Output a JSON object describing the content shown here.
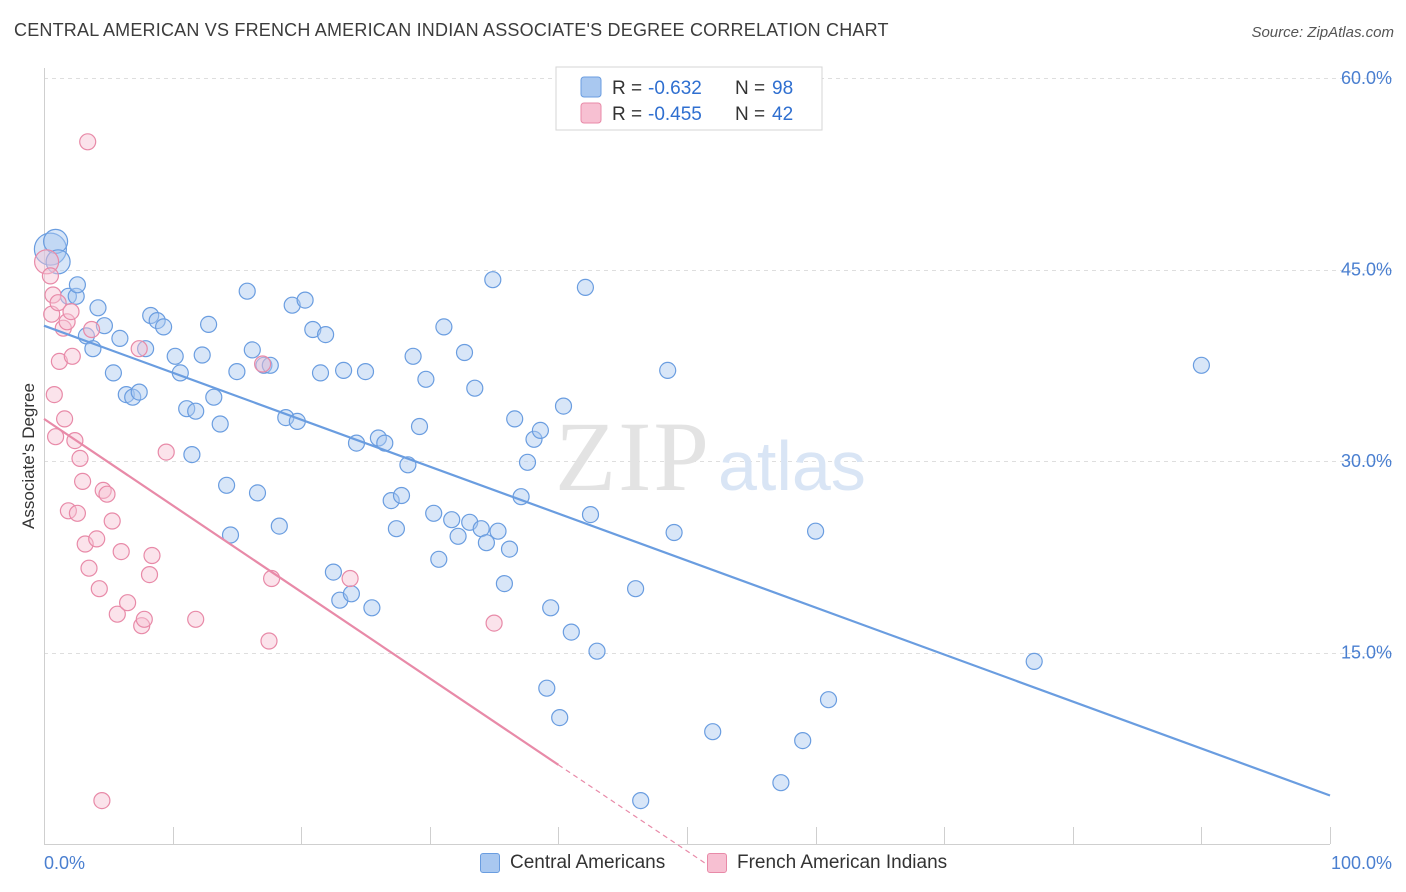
{
  "header": {
    "title": "CENTRAL AMERICAN VS FRENCH AMERICAN INDIAN ASSOCIATE'S DEGREE CORRELATION CHART",
    "source": "Source: ZipAtlas.com"
  },
  "watermark": {
    "zip": "ZIP",
    "atlas": "atlas"
  },
  "stats_legend": [
    {
      "r_label": "R =",
      "r_value": "-0.632",
      "n_label": "N =",
      "n_value": "98",
      "color": "#a9c8f0",
      "stroke": "#6a9de0"
    },
    {
      "r_label": "R =",
      "r_value": "-0.455",
      "n_label": "N =",
      "n_value": "42",
      "color": "#f7c0d2",
      "stroke": "#e88aa8"
    }
  ],
  "bottom_legend": [
    {
      "label": "Central Americans",
      "color": "#a9c8f0",
      "stroke": "#6a9de0"
    },
    {
      "label": "French American Indians",
      "color": "#f7c0d2",
      "stroke": "#e88aa8"
    }
  ],
  "chart_data": {
    "type": "scatter",
    "ylabel": "Associate's Degree",
    "xlim": [
      0,
      100
    ],
    "ylim": [
      0,
      60
    ],
    "x_tick_labels": [
      {
        "value": 0,
        "label": "0.0%"
      },
      {
        "value": 100,
        "label": "100.0%"
      }
    ],
    "y_tick_labels": [
      {
        "value": 15,
        "label": "15.0%"
      },
      {
        "value": 30,
        "label": "30.0%"
      },
      {
        "value": 45,
        "label": "45.0%"
      },
      {
        "value": 60,
        "label": "60.0%"
      }
    ],
    "grid": true,
    "series": [
      {
        "name": "Central Americans",
        "color": "#6a9de0",
        "fill": "#a9c8f0",
        "trend": {
          "x": [
            0,
            100
          ],
          "y": [
            40.6,
            3.8
          ]
        },
        "points": [
          [
            0.5,
            46.6,
            3
          ],
          [
            0.9,
            47.2,
            2
          ],
          [
            1.1,
            45.6,
            2
          ],
          [
            1.9,
            42.9,
            1
          ],
          [
            2.5,
            42.9,
            1
          ],
          [
            2.6,
            43.8,
            1
          ],
          [
            3.3,
            39.8,
            1
          ],
          [
            3.8,
            38.8,
            1
          ],
          [
            4.2,
            42.0,
            1
          ],
          [
            4.7,
            40.6,
            1
          ],
          [
            5.4,
            36.9,
            1
          ],
          [
            5.9,
            39.6,
            1
          ],
          [
            6.4,
            35.2,
            1
          ],
          [
            6.9,
            35.0,
            1
          ],
          [
            7.4,
            35.4,
            1
          ],
          [
            7.9,
            38.8,
            1
          ],
          [
            8.3,
            41.4,
            1
          ],
          [
            8.8,
            41.0,
            1
          ],
          [
            9.3,
            40.5,
            1
          ],
          [
            10.2,
            38.2,
            1
          ],
          [
            10.6,
            36.9,
            1
          ],
          [
            11.1,
            34.1,
            1
          ],
          [
            11.5,
            30.5,
            1
          ],
          [
            11.8,
            33.9,
            1
          ],
          [
            12.3,
            38.3,
            1
          ],
          [
            12.8,
            40.7,
            1
          ],
          [
            13.2,
            35.0,
            1
          ],
          [
            13.7,
            32.9,
            1
          ],
          [
            14.2,
            28.1,
            1
          ],
          [
            14.5,
            24.2,
            1
          ],
          [
            15.0,
            37.0,
            1
          ],
          [
            15.8,
            43.3,
            1
          ],
          [
            16.2,
            38.7,
            1
          ],
          [
            16.6,
            27.5,
            1
          ],
          [
            17.1,
            37.5,
            1
          ],
          [
            17.6,
            37.5,
            1
          ],
          [
            18.3,
            24.9,
            1
          ],
          [
            18.8,
            33.4,
            1
          ],
          [
            19.3,
            42.2,
            1
          ],
          [
            19.7,
            33.1,
            1
          ],
          [
            20.3,
            42.6,
            1
          ],
          [
            20.9,
            40.3,
            1
          ],
          [
            21.5,
            36.9,
            1
          ],
          [
            21.9,
            39.9,
            1
          ],
          [
            22.5,
            21.3,
            1
          ],
          [
            23.0,
            19.1,
            1
          ],
          [
            23.3,
            37.1,
            1
          ],
          [
            23.9,
            19.6,
            1
          ],
          [
            24.3,
            31.4,
            1
          ],
          [
            25.0,
            37.0,
            1
          ],
          [
            25.5,
            18.5,
            1
          ],
          [
            26.0,
            31.8,
            1
          ],
          [
            26.5,
            31.4,
            1
          ],
          [
            27.0,
            26.9,
            1
          ],
          [
            27.4,
            24.7,
            1
          ],
          [
            27.8,
            27.3,
            1
          ],
          [
            28.3,
            29.7,
            1
          ],
          [
            28.7,
            38.2,
            1
          ],
          [
            29.2,
            32.7,
            1
          ],
          [
            29.7,
            36.4,
            1
          ],
          [
            30.3,
            25.9,
            1
          ],
          [
            30.7,
            22.3,
            1
          ],
          [
            31.1,
            40.5,
            1
          ],
          [
            31.7,
            25.4,
            1
          ],
          [
            32.2,
            24.1,
            1
          ],
          [
            32.7,
            38.5,
            1
          ],
          [
            33.1,
            25.2,
            1
          ],
          [
            33.5,
            35.7,
            1
          ],
          [
            34.0,
            24.7,
            1
          ],
          [
            34.4,
            23.6,
            1
          ],
          [
            34.9,
            44.2,
            1
          ],
          [
            35.3,
            24.5,
            1
          ],
          [
            35.8,
            20.4,
            1
          ],
          [
            36.2,
            23.1,
            1
          ],
          [
            36.6,
            33.3,
            1
          ],
          [
            37.1,
            27.2,
            1
          ],
          [
            37.6,
            29.9,
            1
          ],
          [
            38.1,
            31.7,
            1
          ],
          [
            38.6,
            32.4,
            1
          ],
          [
            39.1,
            12.2,
            1
          ],
          [
            39.4,
            18.5,
            1
          ],
          [
            40.1,
            9.9,
            1
          ],
          [
            40.4,
            34.3,
            1
          ],
          [
            41.0,
            16.6,
            1
          ],
          [
            42.1,
            43.6,
            1
          ],
          [
            42.5,
            25.8,
            1
          ],
          [
            43.0,
            15.1,
            1
          ],
          [
            46.0,
            20.0,
            1
          ],
          [
            46.4,
            3.4,
            1
          ],
          [
            48.5,
            37.1,
            1
          ],
          [
            49.0,
            24.4,
            1
          ],
          [
            52.0,
            8.8,
            1
          ],
          [
            57.3,
            4.8,
            1
          ],
          [
            59.0,
            8.1,
            1
          ],
          [
            60.0,
            24.5,
            1
          ],
          [
            61.0,
            11.3,
            1
          ],
          [
            77.0,
            14.3,
            1
          ],
          [
            90.0,
            37.5,
            1
          ]
        ]
      },
      {
        "name": "French American Indians",
        "color": "#e88aa8",
        "fill": "#f7c0d2",
        "trend": {
          "x": [
            0,
            40
          ],
          "y": [
            33.3,
            6.2
          ]
        },
        "trend_ext": {
          "x": [
            40,
            52
          ],
          "y": [
            6.2,
            -1.9
          ]
        },
        "points": [
          [
            0.2,
            45.6,
            2
          ],
          [
            0.5,
            44.5,
            1
          ],
          [
            0.6,
            41.5,
            1
          ],
          [
            0.7,
            43.0,
            1
          ],
          [
            0.8,
            35.2,
            1
          ],
          [
            0.9,
            31.9,
            1
          ],
          [
            1.1,
            42.4,
            1
          ],
          [
            1.2,
            37.8,
            1
          ],
          [
            1.5,
            40.4,
            1
          ],
          [
            1.6,
            33.3,
            1
          ],
          [
            1.8,
            40.9,
            1
          ],
          [
            1.9,
            26.1,
            1
          ],
          [
            2.1,
            41.7,
            1
          ],
          [
            2.2,
            38.2,
            1
          ],
          [
            2.4,
            31.6,
            1
          ],
          [
            2.6,
            25.9,
            1
          ],
          [
            2.8,
            30.2,
            1
          ],
          [
            3.0,
            28.4,
            1
          ],
          [
            3.2,
            23.5,
            1
          ],
          [
            3.4,
            55.0,
            1
          ],
          [
            3.5,
            21.6,
            1
          ],
          [
            3.7,
            40.3,
            1
          ],
          [
            4.1,
            23.9,
            1
          ],
          [
            4.3,
            20.0,
            1
          ],
          [
            4.5,
            3.4,
            1
          ],
          [
            4.6,
            27.7,
            1
          ],
          [
            4.9,
            27.4,
            1
          ],
          [
            5.3,
            25.3,
            1
          ],
          [
            5.7,
            18.0,
            1
          ],
          [
            6.0,
            22.9,
            1
          ],
          [
            6.5,
            18.9,
            1
          ],
          [
            7.4,
            38.8,
            1
          ],
          [
            7.6,
            17.1,
            1
          ],
          [
            7.8,
            17.6,
            1
          ],
          [
            8.2,
            21.1,
            1
          ],
          [
            8.4,
            22.6,
            1
          ],
          [
            9.5,
            30.7,
            1
          ],
          [
            11.8,
            17.6,
            1
          ],
          [
            17.0,
            37.6,
            1
          ],
          [
            17.5,
            15.9,
            1
          ],
          [
            17.7,
            20.8,
            1
          ],
          [
            23.8,
            20.8,
            1
          ],
          [
            35.0,
            17.3,
            1
          ]
        ]
      }
    ]
  }
}
